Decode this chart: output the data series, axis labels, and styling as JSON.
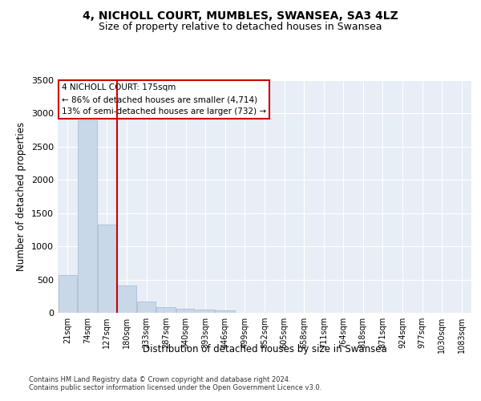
{
  "title": "4, NICHOLL COURT, MUMBLES, SWANSEA, SA3 4LZ",
  "subtitle": "Size of property relative to detached houses in Swansea",
  "xlabel": "Distribution of detached houses by size in Swansea",
  "ylabel": "Number of detached properties",
  "categories": [
    "21sqm",
    "74sqm",
    "127sqm",
    "180sqm",
    "233sqm",
    "287sqm",
    "340sqm",
    "393sqm",
    "446sqm",
    "499sqm",
    "552sqm",
    "605sqm",
    "658sqm",
    "711sqm",
    "764sqm",
    "818sqm",
    "871sqm",
    "924sqm",
    "977sqm",
    "1030sqm",
    "1083sqm"
  ],
  "values": [
    570,
    2900,
    1330,
    410,
    170,
    80,
    55,
    45,
    40,
    0,
    0,
    0,
    0,
    0,
    0,
    0,
    0,
    0,
    0,
    0,
    0
  ],
  "bar_color": "#c8d8e8",
  "bar_edge_color": "#a0b8cc",
  "vline_color": "#cc0000",
  "vline_pos": 2.5,
  "annotation_text": "4 NICHOLL COURT: 175sqm\n← 86% of detached houses are smaller (4,714)\n13% of semi-detached houses are larger (732) →",
  "annotation_box_color": "white",
  "annotation_box_edge": "#cc0000",
  "ylim": [
    0,
    3500
  ],
  "yticks": [
    0,
    500,
    1000,
    1500,
    2000,
    2500,
    3000,
    3500
  ],
  "bg_color": "#e8eef6",
  "grid_color": "#ffffff",
  "title_fontsize": 10,
  "subtitle_fontsize": 9,
  "footer1": "Contains HM Land Registry data © Crown copyright and database right 2024.",
  "footer2": "Contains public sector information licensed under the Open Government Licence v3.0."
}
